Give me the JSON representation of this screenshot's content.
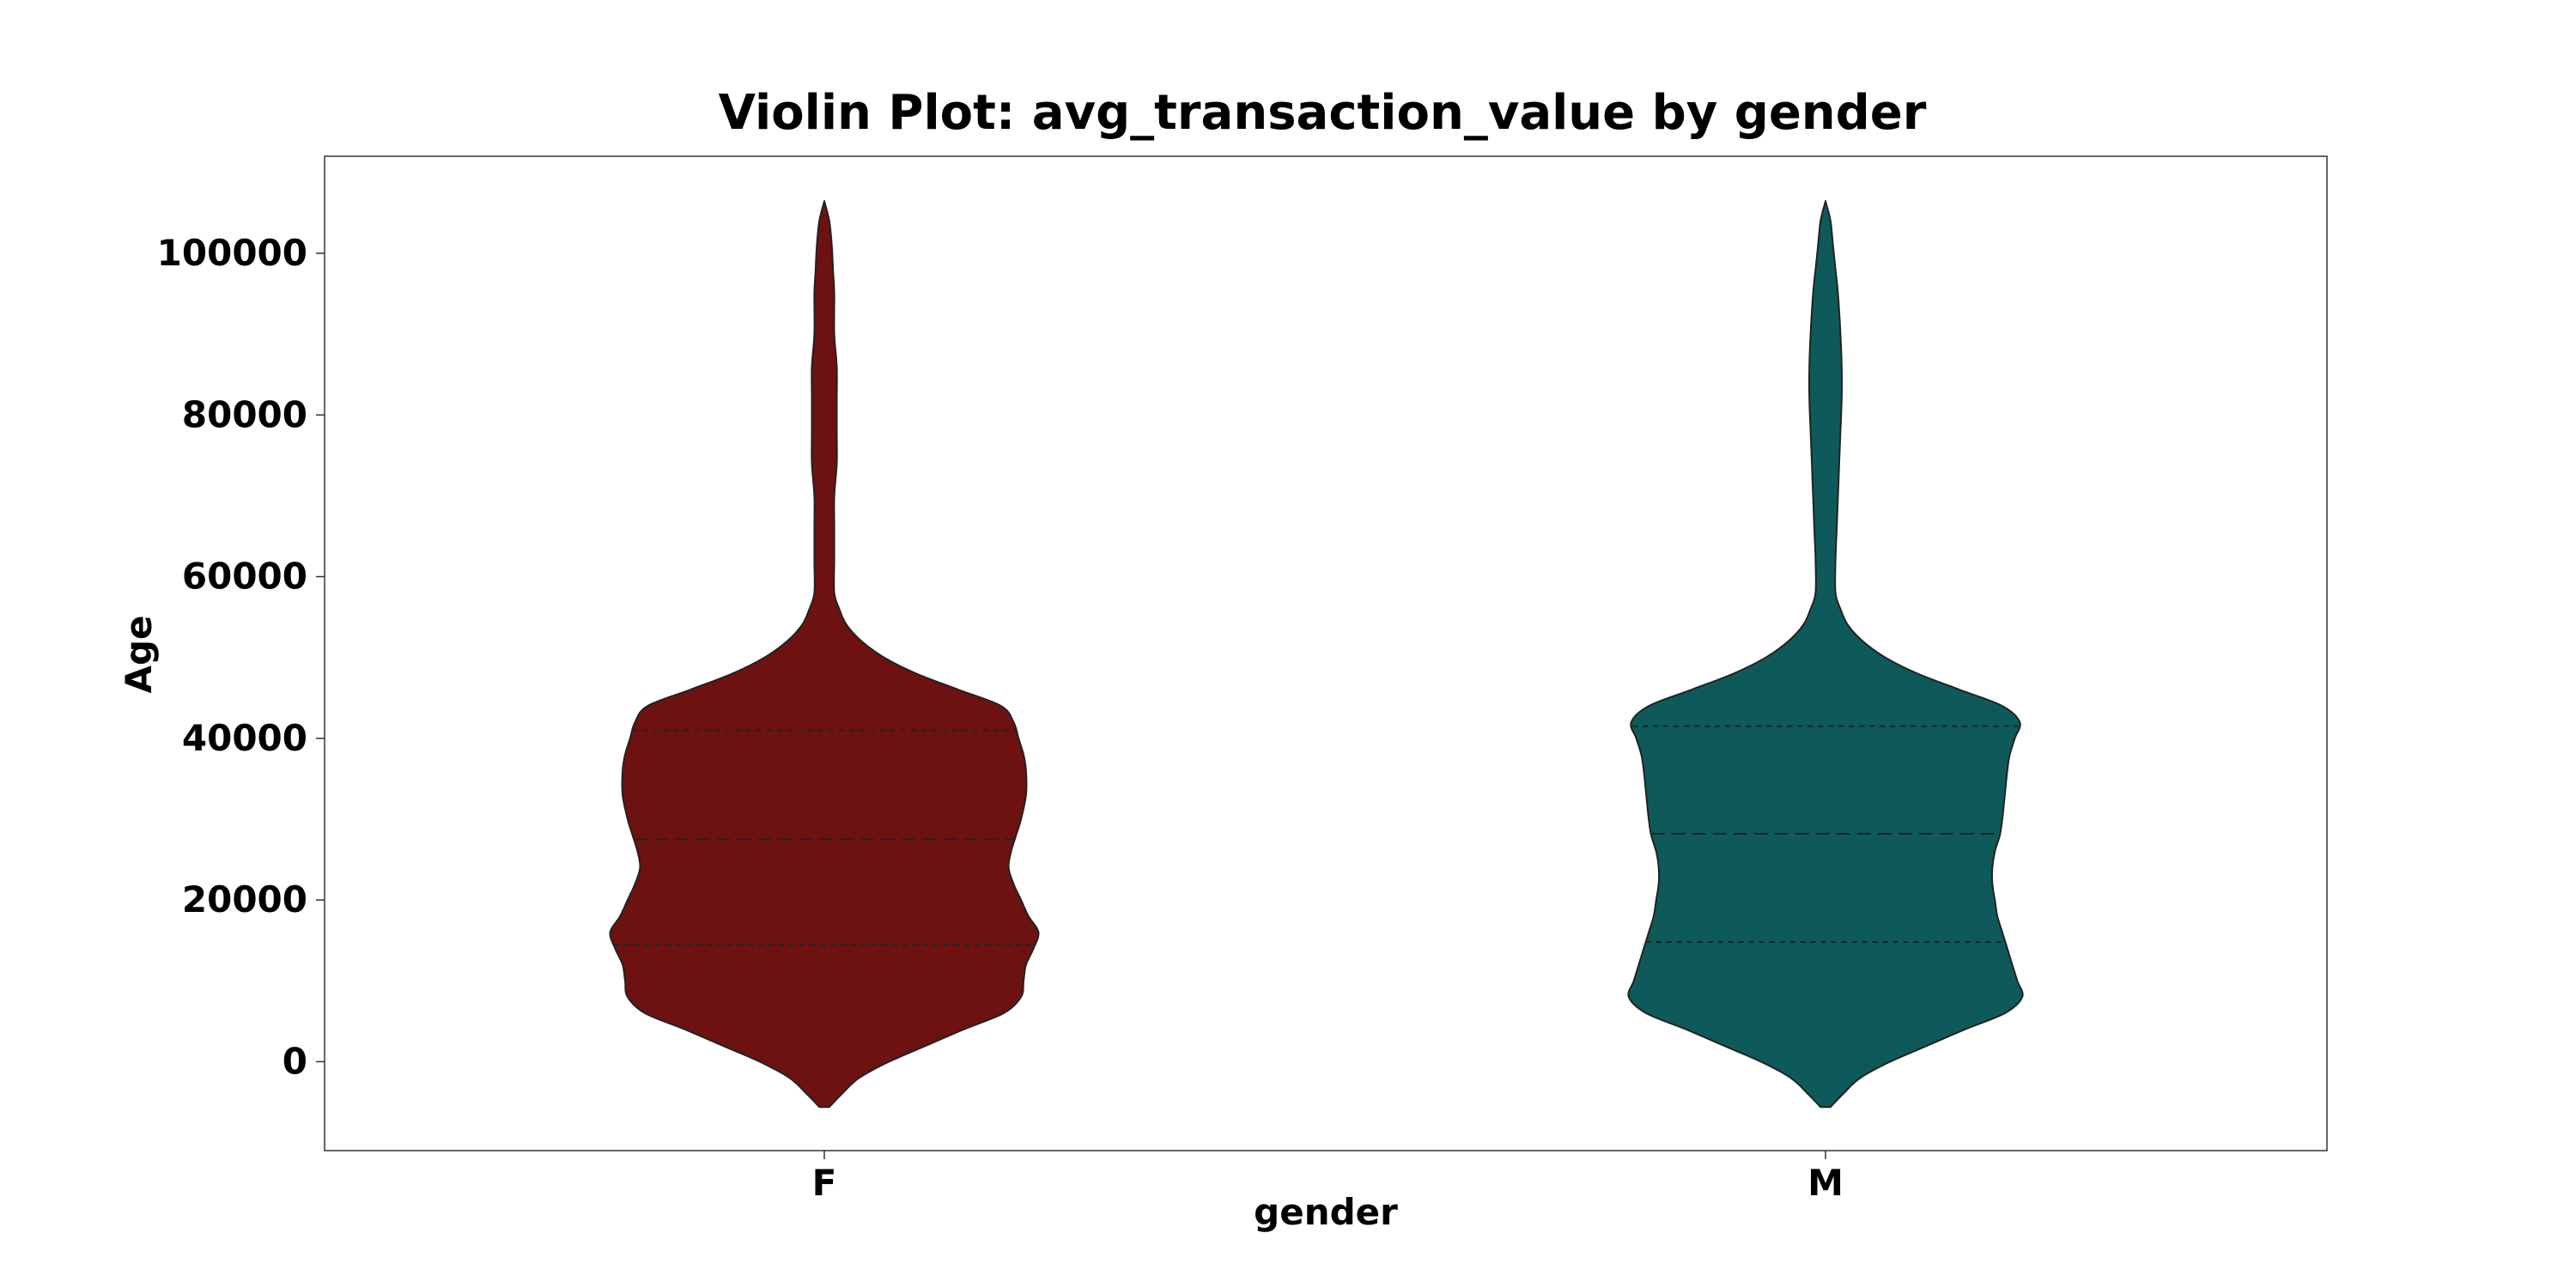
{
  "chart_data": {
    "type": "violin",
    "title": "Violin Plot: avg_transaction_value by gender",
    "xlabel": "gender",
    "ylabel": "Age",
    "categories": [
      "F",
      "M"
    ],
    "ylim": [
      -11000,
      112000
    ],
    "yticks": [
      0,
      20000,
      40000,
      60000,
      80000,
      100000
    ],
    "grid": false,
    "legend": "none",
    "series": [
      {
        "category": "F",
        "color": "#6e1111",
        "quartiles": {
          "q1": 14500,
          "median": 27500,
          "q3": 41000
        },
        "density_profile": [
          [
            -5600,
            0.02
          ],
          [
            -4000,
            0.07
          ],
          [
            -2000,
            0.14
          ],
          [
            0,
            0.26
          ],
          [
            2000,
            0.41
          ],
          [
            4000,
            0.56
          ],
          [
            6000,
            0.72
          ],
          [
            8000,
            0.79
          ],
          [
            10000,
            0.8
          ],
          [
            12000,
            0.81
          ],
          [
            14000,
            0.84
          ],
          [
            16000,
            0.86
          ],
          [
            18000,
            0.82
          ],
          [
            20000,
            0.79
          ],
          [
            22000,
            0.76
          ],
          [
            24000,
            0.74
          ],
          [
            26000,
            0.75
          ],
          [
            28000,
            0.77
          ],
          [
            30000,
            0.79
          ],
          [
            33000,
            0.81
          ],
          [
            36000,
            0.81
          ],
          [
            38000,
            0.8
          ],
          [
            40000,
            0.78
          ],
          [
            42000,
            0.76
          ],
          [
            44000,
            0.71
          ],
          [
            46000,
            0.54
          ],
          [
            48000,
            0.37
          ],
          [
            50000,
            0.24
          ],
          [
            52000,
            0.15
          ],
          [
            54000,
            0.09
          ],
          [
            56000,
            0.06
          ],
          [
            58000,
            0.04
          ],
          [
            62000,
            0.04
          ],
          [
            66000,
            0.04
          ],
          [
            70000,
            0.04
          ],
          [
            74000,
            0.05
          ],
          [
            78000,
            0.05
          ],
          [
            82000,
            0.05
          ],
          [
            86000,
            0.05
          ],
          [
            90000,
            0.04
          ],
          [
            95000,
            0.04
          ],
          [
            98000,
            0.035
          ],
          [
            101000,
            0.03
          ],
          [
            104000,
            0.02
          ],
          [
            106200,
            0.002
          ]
        ]
      },
      {
        "category": "M",
        "color": "#0e5a5a",
        "quartiles": {
          "q1": 14800,
          "median": 28200,
          "q3": 41500
        },
        "density_profile": [
          [
            -5600,
            0.02
          ],
          [
            -4000,
            0.07
          ],
          [
            -2000,
            0.14
          ],
          [
            0,
            0.26
          ],
          [
            2000,
            0.41
          ],
          [
            4000,
            0.56
          ],
          [
            6000,
            0.72
          ],
          [
            8000,
            0.79
          ],
          [
            10000,
            0.77
          ],
          [
            12000,
            0.75
          ],
          [
            14000,
            0.73
          ],
          [
            16000,
            0.71
          ],
          [
            18000,
            0.69
          ],
          [
            20000,
            0.68
          ],
          [
            22000,
            0.67
          ],
          [
            24000,
            0.67
          ],
          [
            26000,
            0.68
          ],
          [
            28000,
            0.7
          ],
          [
            30000,
            0.71
          ],
          [
            33000,
            0.72
          ],
          [
            36000,
            0.73
          ],
          [
            38000,
            0.74
          ],
          [
            40000,
            0.76
          ],
          [
            42000,
            0.78
          ],
          [
            44000,
            0.71
          ],
          [
            46000,
            0.54
          ],
          [
            48000,
            0.37
          ],
          [
            50000,
            0.24
          ],
          [
            52000,
            0.15
          ],
          [
            54000,
            0.09
          ],
          [
            56000,
            0.06
          ],
          [
            58000,
            0.04
          ],
          [
            62000,
            0.04
          ],
          [
            66000,
            0.045
          ],
          [
            70000,
            0.05
          ],
          [
            74000,
            0.055
          ],
          [
            78000,
            0.06
          ],
          [
            82000,
            0.065
          ],
          [
            86000,
            0.065
          ],
          [
            90000,
            0.06
          ],
          [
            95000,
            0.05
          ],
          [
            98000,
            0.04
          ],
          [
            101000,
            0.03
          ],
          [
            104000,
            0.02
          ],
          [
            106200,
            0.002
          ]
        ]
      }
    ]
  }
}
